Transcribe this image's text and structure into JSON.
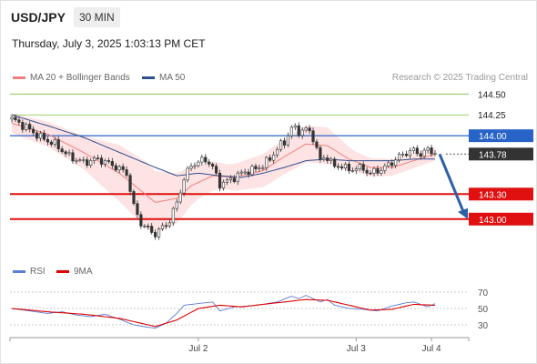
{
  "header": {
    "symbol": "USD/JPY",
    "timeframe": "30 MIN"
  },
  "timestamp": "Thursday, July 3, 2025 1:03:13 PM CET",
  "legend_main": [
    {
      "label": "MA 20 + Bollinger Bands",
      "color": "#f08080"
    },
    {
      "label": "MA 50",
      "color": "#2e4e8e"
    }
  ],
  "credit": "Research © 2025 Trading Central",
  "legend_rsi": [
    {
      "label": "RSI",
      "color": "#5b7fd4"
    },
    {
      "label": "9MA",
      "color": "#dd0000"
    }
  ],
  "chart_data": [
    {
      "type": "candlestick",
      "y_axis": {
        "range": [
          142.55,
          144.7
        ],
        "position": "right"
      },
      "x_ticks": [
        "Jul 2",
        "Jul 3",
        "Jul 4"
      ],
      "levels": [
        {
          "value": 144.5,
          "label": "144.50",
          "style": "green-line",
          "color": "#7fbf3f"
        },
        {
          "value": 144.25,
          "label": "144.25",
          "style": "green-line",
          "color": "#7fbf3f"
        },
        {
          "value": 144.0,
          "label": "144.00",
          "style": "resistance",
          "color": "#2864c8"
        },
        {
          "value": 143.78,
          "label": "143.78",
          "style": "current-price",
          "color": "#333333"
        },
        {
          "value": 143.3,
          "label": "143.30",
          "style": "support",
          "color": "#e01010"
        },
        {
          "value": 143.0,
          "label": "143.00",
          "style": "support",
          "color": "#e01010"
        }
      ],
      "forecast_arrow": {
        "from": 143.78,
        "to": 143.0,
        "direction": "down",
        "color": "#2d5fa8"
      },
      "price_anchors": [
        [
          0,
          144.2
        ],
        [
          4,
          144.1
        ],
        [
          8,
          143.98
        ],
        [
          12,
          143.9
        ],
        [
          16,
          143.75
        ],
        [
          20,
          143.68
        ],
        [
          24,
          143.72
        ],
        [
          28,
          143.65
        ],
        [
          32,
          143.55
        ],
        [
          34,
          143.15
        ],
        [
          36,
          142.95
        ],
        [
          38,
          142.88
        ],
        [
          40,
          142.82
        ],
        [
          42,
          142.9
        ],
        [
          44,
          142.98
        ],
        [
          46,
          143.2
        ],
        [
          48,
          143.48
        ],
        [
          50,
          143.65
        ],
        [
          52,
          143.68
        ],
        [
          54,
          143.72
        ],
        [
          56,
          143.62
        ],
        [
          58,
          143.42
        ],
        [
          60,
          143.45
        ],
        [
          62,
          143.5
        ],
        [
          64,
          143.55
        ],
        [
          66,
          143.58
        ],
        [
          68,
          143.6
        ],
        [
          70,
          143.65
        ],
        [
          72,
          143.72
        ],
        [
          74,
          143.85
        ],
        [
          76,
          143.92
        ],
        [
          78,
          144.1
        ],
        [
          80,
          144.05
        ],
        [
          82,
          144.08
        ],
        [
          84,
          143.98
        ],
        [
          86,
          143.7
        ],
        [
          88,
          143.75
        ],
        [
          90,
          143.62
        ],
        [
          92,
          143.65
        ],
        [
          94,
          143.58
        ],
        [
          96,
          143.62
        ],
        [
          98,
          143.6
        ],
        [
          100,
          143.55
        ],
        [
          102,
          143.58
        ],
        [
          104,
          143.62
        ],
        [
          106,
          143.68
        ],
        [
          108,
          143.75
        ],
        [
          110,
          143.8
        ],
        [
          112,
          143.82
        ],
        [
          114,
          143.78
        ],
        [
          116,
          143.83
        ],
        [
          118,
          143.8
        ]
      ],
      "ma20_anchors": [
        [
          0,
          144.15
        ],
        [
          10,
          144.02
        ],
        [
          20,
          143.8
        ],
        [
          30,
          143.55
        ],
        [
          40,
          143.2
        ],
        [
          46,
          143.25
        ],
        [
          50,
          143.4
        ],
        [
          56,
          143.52
        ],
        [
          62,
          143.5
        ],
        [
          70,
          143.58
        ],
        [
          76,
          143.75
        ],
        [
          82,
          143.9
        ],
        [
          88,
          143.88
        ],
        [
          94,
          143.72
        ],
        [
          100,
          143.62
        ],
        [
          106,
          143.62
        ],
        [
          112,
          143.7
        ],
        [
          118,
          143.78
        ]
      ],
      "ma50_anchors": [
        [
          0,
          144.25
        ],
        [
          10,
          144.12
        ],
        [
          20,
          143.98
        ],
        [
          30,
          143.8
        ],
        [
          40,
          143.62
        ],
        [
          46,
          143.52
        ],
        [
          52,
          143.55
        ],
        [
          58,
          143.52
        ],
        [
          64,
          143.5
        ],
        [
          70,
          143.55
        ],
        [
          76,
          143.62
        ],
        [
          82,
          143.7
        ],
        [
          88,
          143.72
        ],
        [
          94,
          143.7
        ],
        [
          100,
          143.7
        ],
        [
          106,
          143.7
        ],
        [
          112,
          143.72
        ],
        [
          118,
          143.72
        ]
      ],
      "band_width_anchors": [
        [
          0,
          0.12
        ],
        [
          10,
          0.15
        ],
        [
          20,
          0.2
        ],
        [
          30,
          0.34
        ],
        [
          38,
          0.4
        ],
        [
          46,
          0.3
        ],
        [
          52,
          0.2
        ],
        [
          60,
          0.15
        ],
        [
          70,
          0.2
        ],
        [
          80,
          0.22
        ],
        [
          88,
          0.22
        ],
        [
          96,
          0.12
        ],
        [
          106,
          0.1
        ],
        [
          118,
          0.08
        ]
      ]
    },
    {
      "type": "line",
      "title": "RSI",
      "y_ticks": [
        70,
        50,
        30
      ],
      "y_axis": {
        "range": [
          20,
          80
        ]
      },
      "series": [
        {
          "name": "RSI",
          "color": "#5b7fd4",
          "anchors": [
            [
              0,
              50
            ],
            [
              5,
              47
            ],
            [
              10,
              44
            ],
            [
              14,
              46
            ],
            [
              18,
              42
            ],
            [
              22,
              40
            ],
            [
              26,
              43
            ],
            [
              30,
              37
            ],
            [
              34,
              30
            ],
            [
              38,
              27
            ],
            [
              40,
              26
            ],
            [
              43,
              32
            ],
            [
              46,
              44
            ],
            [
              48,
              54
            ],
            [
              52,
              56
            ],
            [
              56,
              58
            ],
            [
              58,
              47
            ],
            [
              62,
              52
            ],
            [
              66,
              53
            ],
            [
              70,
              55
            ],
            [
              74,
              58
            ],
            [
              78,
              65
            ],
            [
              80,
              62
            ],
            [
              82,
              66
            ],
            [
              86,
              58
            ],
            [
              88,
              61
            ],
            [
              90,
              54
            ],
            [
              94,
              50
            ],
            [
              98,
              49
            ],
            [
              102,
              47
            ],
            [
              106,
              53
            ],
            [
              110,
              57
            ],
            [
              112,
              58
            ],
            [
              114,
              55
            ],
            [
              116,
              52
            ],
            [
              118,
              56
            ]
          ]
        },
        {
          "name": "9MA",
          "color": "#dd0000",
          "anchors": [
            [
              0,
              50
            ],
            [
              10,
              46
            ],
            [
              20,
              43
            ],
            [
              30,
              38
            ],
            [
              40,
              28
            ],
            [
              46,
              36
            ],
            [
              52,
              50
            ],
            [
              58,
              54
            ],
            [
              64,
              52
            ],
            [
              70,
              55
            ],
            [
              76,
              58
            ],
            [
              82,
              61
            ],
            [
              88,
              60
            ],
            [
              94,
              54
            ],
            [
              100,
              48
            ],
            [
              106,
              49
            ],
            [
              112,
              55
            ],
            [
              118,
              54
            ]
          ]
        }
      ]
    }
  ]
}
